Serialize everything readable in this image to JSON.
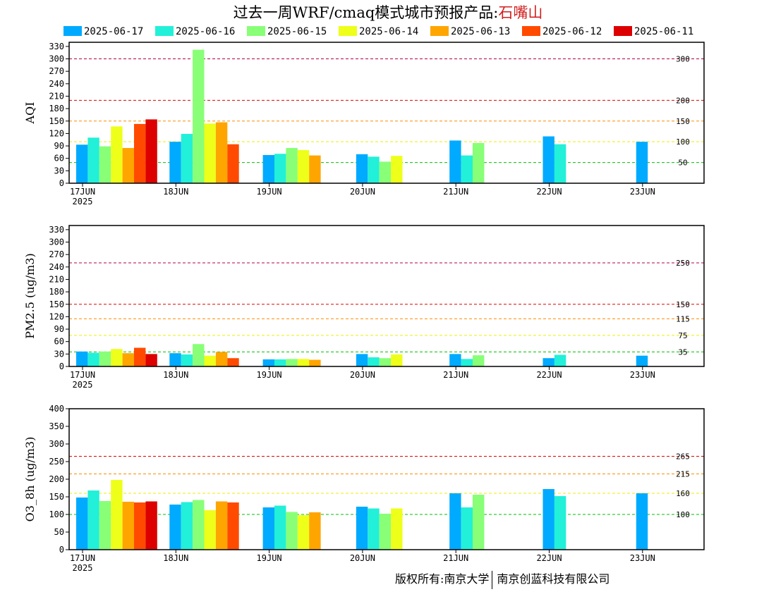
{
  "page": {
    "title_prefix": "过去一周WRF/cmaq模式城市预报产品:",
    "city": "石嘴山",
    "footer_left": "版权所有:南京大学",
    "footer_right": "南京创蓝科技有限公司"
  },
  "legend": [
    {
      "label": "2025-06-17",
      "color": "#00aaff"
    },
    {
      "label": "2025-06-16",
      "color": "#22f0d8"
    },
    {
      "label": "2025-06-15",
      "color": "#88ff77"
    },
    {
      "label": "2025-06-14",
      "color": "#eeff1a"
    },
    {
      "label": "2025-06-13",
      "color": "#ffa500"
    },
    {
      "label": "2025-06-12",
      "color": "#ff4a00"
    },
    {
      "label": "2025-06-11",
      "color": "#dd0000"
    }
  ],
  "chart_data": [
    {
      "type": "bar",
      "ylabel": "AQI",
      "ylim": [
        0,
        340
      ],
      "yticks": [
        0,
        30,
        60,
        90,
        120,
        150,
        180,
        210,
        240,
        270,
        300,
        330
      ],
      "categories": [
        "17JUN",
        "18JUN",
        "19JUN",
        "20JUN",
        "21JUN",
        "22JUN",
        "23JUN"
      ],
      "year_label": "2025",
      "thresholds": [
        {
          "value": 300,
          "label": "300",
          "color": "#b0004a"
        },
        {
          "value": 200,
          "label": "200",
          "color": "#e00000"
        },
        {
          "value": 150,
          "label": "150",
          "color": "#ff8c00"
        },
        {
          "value": 100,
          "label": "100",
          "color": "#eeee00"
        },
        {
          "value": 50,
          "label": "50",
          "color": "#00c000"
        }
      ],
      "series": [
        {
          "name": "2025-06-17",
          "values": [
            93,
            100,
            68,
            70,
            103,
            113,
            100
          ]
        },
        {
          "name": "2025-06-16",
          "values": [
            110,
            119,
            71,
            64,
            67,
            94,
            null
          ]
        },
        {
          "name": "2025-06-15",
          "values": [
            89,
            322,
            85,
            52,
            97,
            null,
            null
          ]
        },
        {
          "name": "2025-06-14",
          "values": [
            137,
            144,
            80,
            66,
            null,
            null,
            null
          ]
        },
        {
          "name": "2025-06-13",
          "values": [
            85,
            147,
            67,
            null,
            null,
            null,
            null
          ]
        },
        {
          "name": "2025-06-12",
          "values": [
            143,
            94,
            null,
            null,
            null,
            null,
            null
          ]
        },
        {
          "name": "2025-06-11",
          "values": [
            154,
            null,
            null,
            null,
            null,
            null,
            null
          ]
        }
      ]
    },
    {
      "type": "bar",
      "ylabel": "PM2.5 (ug/m3)",
      "ylim": [
        0,
        340
      ],
      "yticks": [
        0,
        30,
        60,
        90,
        120,
        150,
        180,
        210,
        240,
        270,
        300,
        330
      ],
      "categories": [
        "17JUN",
        "18JUN",
        "19JUN",
        "20JUN",
        "21JUN",
        "22JUN",
        "23JUN"
      ],
      "year_label": "2025",
      "thresholds": [
        {
          "value": 250,
          "label": "250",
          "color": "#b0004a"
        },
        {
          "value": 150,
          "label": "150",
          "color": "#e00000"
        },
        {
          "value": 115,
          "label": "115",
          "color": "#ff8c00"
        },
        {
          "value": 75,
          "label": "75",
          "color": "#eeee00"
        },
        {
          "value": 35,
          "label": "35",
          "color": "#00c000"
        }
      ],
      "series": [
        {
          "name": "2025-06-17",
          "values": [
            36,
            32,
            17,
            30,
            30,
            20,
            26
          ]
        },
        {
          "name": "2025-06-16",
          "values": [
            33,
            29,
            17,
            22,
            18,
            28,
            null
          ]
        },
        {
          "name": "2025-06-15",
          "values": [
            36,
            54,
            18,
            20,
            27,
            null,
            null
          ]
        },
        {
          "name": "2025-06-14",
          "values": [
            42,
            26,
            18,
            29,
            null,
            null,
            null
          ]
        },
        {
          "name": "2025-06-13",
          "values": [
            32,
            35,
            16,
            null,
            null,
            null,
            null
          ]
        },
        {
          "name": "2025-06-12",
          "values": [
            45,
            20,
            null,
            null,
            null,
            null,
            null
          ]
        },
        {
          "name": "2025-06-11",
          "values": [
            30,
            null,
            null,
            null,
            null,
            null,
            null
          ]
        }
      ]
    },
    {
      "type": "bar",
      "ylabel": "O3_8h (ug/m3)",
      "ylim": [
        0,
        400
      ],
      "yticks": [
        0,
        50,
        100,
        150,
        200,
        250,
        300,
        350,
        400
      ],
      "categories": [
        "17JUN",
        "18JUN",
        "19JUN",
        "20JUN",
        "21JUN",
        "22JUN",
        "23JUN"
      ],
      "year_label": "2025",
      "thresholds": [
        {
          "value": 265,
          "label": "265",
          "color": "#e00000"
        },
        {
          "value": 215,
          "label": "215",
          "color": "#ff8c00"
        },
        {
          "value": 160,
          "label": "160",
          "color": "#eeee00"
        },
        {
          "value": 100,
          "label": "100",
          "color": "#00c000"
        }
      ],
      "series": [
        {
          "name": "2025-06-17",
          "values": [
            148,
            128,
            120,
            122,
            160,
            172,
            160
          ]
        },
        {
          "name": "2025-06-16",
          "values": [
            168,
            135,
            125,
            117,
            120,
            152,
            null
          ]
        },
        {
          "name": "2025-06-15",
          "values": [
            138,
            141,
            107,
            102,
            156,
            null,
            null
          ]
        },
        {
          "name": "2025-06-14",
          "values": [
            198,
            112,
            98,
            117,
            null,
            null,
            null
          ]
        },
        {
          "name": "2025-06-13",
          "values": [
            136,
            137,
            106,
            null,
            null,
            null,
            null
          ]
        },
        {
          "name": "2025-06-12",
          "values": [
            134,
            134,
            null,
            null,
            null,
            null,
            null
          ]
        },
        {
          "name": "2025-06-11",
          "values": [
            137,
            null,
            null,
            null,
            null,
            null,
            null
          ]
        }
      ]
    }
  ]
}
